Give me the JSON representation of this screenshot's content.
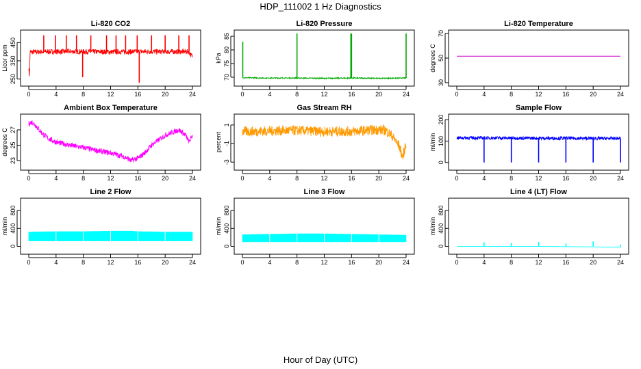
{
  "title": "HDP_111002  1 Hz Diagnostics",
  "xlabel": "Hour of Day (UTC)",
  "chart_data": [
    {
      "type": "line",
      "title": "Li-820 CO2",
      "ylabel": "Licor ppm",
      "xlim": [
        0,
        24
      ],
      "ylim": [
        230,
        500
      ],
      "xticks": [
        0,
        4,
        8,
        12,
        16,
        20,
        24
      ],
      "yticks": [
        250,
        350,
        450
      ],
      "color": "#ff0000",
      "baseline": 400,
      "noise": 14,
      "spikes": [
        [
          2.2,
          490
        ],
        [
          3.9,
          490
        ],
        [
          5.5,
          490
        ],
        [
          7.0,
          490
        ],
        [
          7.9,
          260
        ],
        [
          9.1,
          490
        ],
        [
          11.4,
          490
        ],
        [
          12.8,
          490
        ],
        [
          14.2,
          490
        ],
        [
          15.9,
          490
        ],
        [
          16.2,
          230
        ],
        [
          18.0,
          490
        ],
        [
          20.0,
          490
        ],
        [
          22.0,
          490
        ],
        [
          23.5,
          490
        ]
      ],
      "series": [
        {
          "name": "CO2",
          "x": [
            0,
            0.1,
            0.2,
            0.4,
            1,
            3,
            6,
            9,
            12,
            15,
            18,
            21,
            23.5,
            23.8,
            24
          ],
          "y": [
            310,
            270,
            400,
            398,
            399,
            400,
            401,
            400,
            399,
            400,
            401,
            400,
            400,
            380,
            375
          ]
        }
      ]
    },
    {
      "type": "line",
      "title": "Li-820 Pressure",
      "ylabel": "kPa",
      "xlim": [
        0,
        24
      ],
      "ylim": [
        68,
        86
      ],
      "xticks": [
        0,
        4,
        8,
        12,
        16,
        20,
        24
      ],
      "yticks": [
        70,
        75,
        80,
        85
      ],
      "color": "#00aa00",
      "baseline": 69.7,
      "noise": 0.2,
      "spikes": [
        [
          0.05,
          83
        ],
        [
          8.0,
          86
        ],
        [
          15.9,
          86
        ],
        [
          16.0,
          86
        ],
        [
          24.0,
          86
        ]
      ],
      "series": [
        {
          "name": "Pressure",
          "x": [
            0,
            0.2,
            4,
            8,
            12,
            16,
            20,
            24
          ],
          "y": [
            70,
            69.8,
            69.7,
            69.7,
            69.6,
            69.7,
            69.6,
            69.7
          ]
        }
      ]
    },
    {
      "type": "line",
      "title": "Li-820 Temperature",
      "ylabel": "degrees C",
      "xlim": [
        0,
        24
      ],
      "ylim": [
        30,
        70
      ],
      "xticks": [
        0,
        4,
        8,
        12,
        16,
        20,
        24
      ],
      "yticks": [
        30,
        50,
        70
      ],
      "color": "#cc00cc",
      "baseline": 51.5,
      "noise": 0,
      "spikes": [],
      "series": [
        {
          "name": "Temperature",
          "x": [
            0,
            24
          ],
          "y": [
            51.5,
            51.5
          ]
        }
      ]
    },
    {
      "type": "line",
      "title": "Ambient Box Temperature",
      "ylabel": "degrees C",
      "xlim": [
        0,
        24
      ],
      "ylim": [
        22.2,
        28.6
      ],
      "xticks": [
        0,
        4,
        8,
        12,
        16,
        20,
        24
      ],
      "yticks": [
        23,
        25,
        27
      ],
      "color": "#ff00ff",
      "baseline": 0,
      "noise": 0.35,
      "spikes": [],
      "series": [
        {
          "name": "Box Temperature",
          "x": [
            0,
            0.5,
            1,
            2,
            3,
            4,
            6,
            8,
            10,
            12,
            14,
            15,
            16,
            17,
            18,
            20,
            22,
            23,
            23.5,
            24
          ],
          "y": [
            27.8,
            28.0,
            27.6,
            26.5,
            25.8,
            25.4,
            25.0,
            24.7,
            24.3,
            24.0,
            23.5,
            23.0,
            23.3,
            24.0,
            25.0,
            26.3,
            27.0,
            26.3,
            25.4,
            26.3
          ]
        }
      ]
    },
    {
      "type": "line",
      "title": "Gas Stream RH",
      "ylabel": "percent",
      "xlim": [
        0,
        24
      ],
      "ylim": [
        -3.5,
        1.8
      ],
      "xticks": [
        0,
        4,
        8,
        12,
        16,
        20,
        24
      ],
      "yticks": [
        -3,
        -1,
        1
      ],
      "color": "#ff9900",
      "baseline": 0,
      "noise": 0.55,
      "spikes": [],
      "series": [
        {
          "name": "RH",
          "x": [
            0,
            2,
            4,
            6,
            8,
            10,
            12,
            14,
            16,
            18,
            20,
            21,
            22,
            23,
            23.5,
            24
          ],
          "y": [
            0.3,
            0.3,
            0.35,
            0.4,
            0.4,
            0.35,
            0.3,
            0.3,
            0.3,
            0.4,
            0.5,
            0.4,
            -0.2,
            -1.3,
            -2.5,
            -1.0
          ]
        }
      ]
    },
    {
      "type": "line",
      "title": "Sample Flow",
      "ylabel": "ml/min",
      "xlim": [
        0,
        24
      ],
      "ylim": [
        -20,
        210
      ],
      "xticks": [
        0,
        4,
        8,
        12,
        16,
        20,
        24
      ],
      "yticks": [
        0,
        100,
        200
      ],
      "color": "#0000ff",
      "baseline": 112,
      "noise": 8,
      "spikes": [
        [
          4.0,
          0
        ],
        [
          8.0,
          0
        ],
        [
          12.0,
          0
        ],
        [
          16.0,
          0
        ],
        [
          20.0,
          0
        ],
        [
          24.0,
          0
        ]
      ],
      "series": [
        {
          "name": "Sample Flow",
          "x": [
            0,
            24
          ],
          "y": [
            115,
            112
          ]
        }
      ]
    },
    {
      "type": "area",
      "title": "Line 2 Flow",
      "ylabel": "ml/min",
      "xlim": [
        0,
        24
      ],
      "ylim": [
        -100,
        1000
      ],
      "xticks": [
        0,
        4,
        8,
        12,
        16,
        20,
        24
      ],
      "yticks": [
        0,
        400,
        800
      ],
      "color": "#00ffff",
      "series": [
        {
          "name": "Line 2 Flow",
          "x": [
            0,
            0.1,
            4,
            8,
            12,
            15,
            16,
            20,
            23.8,
            24
          ],
          "lower": [
            120,
            120,
            120,
            120,
            120,
            120,
            120,
            120,
            120,
            120
          ],
          "upper": [
            320,
            320,
            330,
            330,
            340,
            340,
            330,
            320,
            320,
            320
          ]
        }
      ]
    },
    {
      "type": "area",
      "title": "Line 3 Flow",
      "ylabel": "ml/min",
      "xlim": [
        0,
        24
      ],
      "ylim": [
        -100,
        1000
      ],
      "xticks": [
        0,
        4,
        8,
        12,
        16,
        20,
        24
      ],
      "yticks": [
        0,
        400,
        800
      ],
      "color": "#00ffff",
      "series": [
        {
          "name": "Line 3 Flow",
          "x": [
            0,
            0.1,
            4,
            8,
            12,
            16,
            20,
            24
          ],
          "lower": [
            100,
            100,
            100,
            100,
            100,
            100,
            100,
            100
          ],
          "upper": [
            260,
            260,
            270,
            280,
            280,
            270,
            260,
            250
          ]
        }
      ]
    },
    {
      "type": "line",
      "title": "Line 4 (LT) Flow",
      "ylabel": "ml/min",
      "xlim": [
        0,
        24
      ],
      "ylim": [
        -100,
        1000
      ],
      "xticks": [
        0,
        4,
        8,
        12,
        16,
        20,
        24
      ],
      "yticks": [
        0,
        400,
        800
      ],
      "color": "#00ffff",
      "baseline": 0,
      "noise": 0,
      "spikes": [
        [
          4.0,
          90
        ],
        [
          8.0,
          70
        ],
        [
          12.0,
          100
        ],
        [
          16.0,
          60
        ],
        [
          20.0,
          110
        ],
        [
          24.0,
          40
        ]
      ],
      "series": [
        {
          "name": "Line 4 Flow",
          "x": [
            0,
            22,
            23,
            24
          ],
          "y": [
            0,
            0,
            -20,
            -20
          ]
        }
      ]
    }
  ]
}
